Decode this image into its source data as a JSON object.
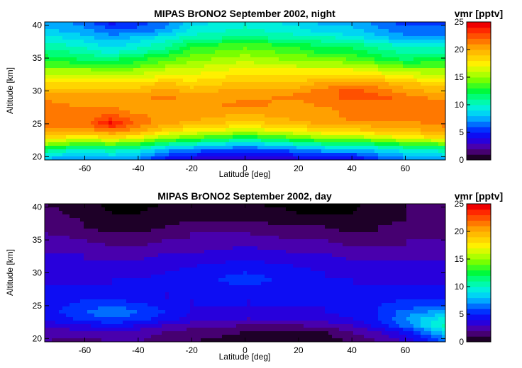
{
  "chart_data": [
    {
      "type": "heatmap",
      "title": "MIPAS BrONO2  September 2002, night",
      "xlabel": "Latitude [deg]",
      "ylabel": "Altitude [km]",
      "xlim": [
        -75,
        75
      ],
      "ylim": [
        19.5,
        40.5
      ],
      "x_ticks": [
        -60,
        -40,
        -20,
        0,
        20,
        40,
        60
      ],
      "y_ticks": [
        20,
        25,
        30,
        35,
        40
      ],
      "x": [
        -75,
        -60,
        -50,
        -40,
        -30,
        -20,
        0,
        20,
        30,
        40,
        50,
        60,
        75
      ],
      "y": [
        19.5,
        21,
        22,
        23,
        24,
        25,
        26,
        27,
        28,
        29,
        30,
        31,
        32,
        33,
        34,
        35,
        36,
        37,
        38,
        39,
        40.5
      ],
      "z": [
        [
          8,
          7,
          8,
          7,
          5,
          4,
          3,
          4,
          4,
          4,
          6,
          7,
          8
        ],
        [
          12,
          10,
          11,
          10,
          8,
          7,
          6,
          7,
          8,
          8,
          9,
          10,
          11
        ],
        [
          16,
          14,
          15,
          14,
          12,
          11,
          9,
          11,
          12,
          12,
          13,
          14,
          15
        ],
        [
          19,
          18,
          19,
          18,
          16,
          15,
          13,
          15,
          16,
          16,
          17,
          18,
          19
        ],
        [
          21,
          21,
          22,
          21,
          19,
          18,
          17,
          18,
          19,
          19,
          20,
          20,
          21
        ],
        [
          22,
          22,
          25,
          22,
          21,
          20,
          19,
          20,
          21,
          21,
          21,
          21,
          22
        ],
        [
          22,
          22,
          23,
          22,
          21,
          21,
          20,
          21,
          21,
          22,
          22,
          22,
          22
        ],
        [
          22,
          22,
          22,
          21,
          21,
          21,
          21,
          21,
          21,
          22,
          22,
          22,
          22
        ],
        [
          22,
          21,
          21,
          21,
          21,
          21,
          22,
          21,
          22,
          22,
          22,
          22,
          22
        ],
        [
          21,
          21,
          21,
          21,
          22,
          21,
          21,
          22,
          22,
          23,
          23,
          22,
          21
        ],
        [
          20,
          20,
          20,
          20,
          21,
          20,
          21,
          21,
          22,
          23,
          22,
          21,
          20
        ],
        [
          19,
          19,
          19,
          19,
          20,
          19,
          20,
          20,
          21,
          21,
          21,
          20,
          19
        ],
        [
          17,
          17,
          17,
          17,
          18,
          18,
          19,
          19,
          19,
          19,
          19,
          18,
          17
        ],
        [
          16,
          16,
          16,
          16,
          17,
          17,
          18,
          18,
          18,
          18,
          17,
          16,
          16
        ],
        [
          14,
          14,
          13,
          14,
          15,
          16,
          17,
          16,
          16,
          16,
          15,
          14,
          14
        ],
        [
          13,
          12,
          12,
          13,
          14,
          15,
          16,
          15,
          15,
          14,
          13,
          12,
          13
        ],
        [
          12,
          11,
          10,
          11,
          12,
          14,
          15,
          14,
          13,
          13,
          12,
          11,
          11
        ],
        [
          11,
          10,
          9,
          10,
          11,
          13,
          14,
          13,
          12,
          12,
          11,
          10,
          10
        ],
        [
          10,
          9,
          8,
          9,
          10,
          11,
          12,
          11,
          11,
          10,
          9,
          8,
          8
        ],
        [
          9,
          8,
          7,
          7,
          8,
          10,
          11,
          10,
          9,
          9,
          8,
          7,
          7
        ],
        [
          8,
          7,
          5,
          6,
          7,
          9,
          10,
          9,
          8,
          8,
          7,
          6,
          6
        ]
      ],
      "colorbar": {
        "title": "vmr [pptv]",
        "range": [
          0,
          25
        ],
        "ticks": [
          0,
          5,
          10,
          15,
          20,
          25
        ]
      }
    },
    {
      "type": "heatmap",
      "title": "MIPAS BrONO2  September 2002, day",
      "xlabel": "Latitude [deg]",
      "ylabel": "Altitude [km]",
      "xlim": [
        -75,
        75
      ],
      "ylim": [
        19.5,
        40.5
      ],
      "x_ticks": [
        -60,
        -40,
        -20,
        0,
        20,
        40,
        60
      ],
      "y_ticks": [
        20,
        25,
        30,
        35,
        40
      ],
      "x": [
        -75,
        -60,
        -50,
        -40,
        -30,
        -20,
        0,
        20,
        30,
        40,
        50,
        60,
        75
      ],
      "y": [
        19.5,
        21,
        22,
        23,
        24,
        25,
        26,
        27,
        28,
        29,
        30,
        31,
        32,
        33,
        34,
        35,
        36,
        37,
        38,
        39,
        40.5
      ],
      "z": [
        [
          2.5,
          2.0,
          2.5,
          2.5,
          2.0,
          1.5,
          1.0,
          0.8,
          1.0,
          1.5,
          2.5,
          3.5,
          6.5
        ],
        [
          3.0,
          3.0,
          3.5,
          3.0,
          2.5,
          2.0,
          1.5,
          1.5,
          1.5,
          2.5,
          3.5,
          5.0,
          9.0
        ],
        [
          4.0,
          4.5,
          5.0,
          4.5,
          3.5,
          3.0,
          2.5,
          2.5,
          3.0,
          3.5,
          5.0,
          7.0,
          11.0
        ],
        [
          4.5,
          6.0,
          6.5,
          6.0,
          5.0,
          4.0,
          3.5,
          3.5,
          4.0,
          4.5,
          5.5,
          7.5,
          10.0
        ],
        [
          5.0,
          6.5,
          7.5,
          6.5,
          5.5,
          4.5,
          4.0,
          4.0,
          4.5,
          5.0,
          5.5,
          7.0,
          8.0
        ],
        [
          5.0,
          6.0,
          6.5,
          6.0,
          5.0,
          4.5,
          4.5,
          4.5,
          4.5,
          5.0,
          5.5,
          6.0,
          6.5
        ],
        [
          4.5,
          5.5,
          5.5,
          5.0,
          4.5,
          4.5,
          4.5,
          4.5,
          4.5,
          4.5,
          5.0,
          5.5,
          5.5
        ],
        [
          4.5,
          5.0,
          5.0,
          4.5,
          4.5,
          4.5,
          5.0,
          4.5,
          4.5,
          4.5,
          4.5,
          5.0,
          5.0
        ],
        [
          4.5,
          4.5,
          4.5,
          4.5,
          5.0,
          5.0,
          5.5,
          5.0,
          4.5,
          4.5,
          4.5,
          4.5,
          4.5
        ],
        [
          4.0,
          4.0,
          4.5,
          4.5,
          5.0,
          5.0,
          6.0,
          5.0,
          4.5,
          4.5,
          4.0,
          4.0,
          4.0
        ],
        [
          4.0,
          4.0,
          4.0,
          4.0,
          4.5,
          5.0,
          5.5,
          5.0,
          4.5,
          4.0,
          4.0,
          4.0,
          4.0
        ],
        [
          4.0,
          4.0,
          4.0,
          4.0,
          4.0,
          4.5,
          5.0,
          4.5,
          4.0,
          4.0,
          4.0,
          4.0,
          4.0
        ],
        [
          3.5,
          3.5,
          3.5,
          3.5,
          4.0,
          4.0,
          4.5,
          4.0,
          4.0,
          3.5,
          3.5,
          3.5,
          3.5
        ],
        [
          3.5,
          3.5,
          3.0,
          3.0,
          3.5,
          3.5,
          4.0,
          3.5,
          3.5,
          3.0,
          3.0,
          3.0,
          3.0
        ],
        [
          3.0,
          3.0,
          2.5,
          2.5,
          3.0,
          3.0,
          3.5,
          3.0,
          3.0,
          2.5,
          2.5,
          2.5,
          3.0
        ],
        [
          3.0,
          2.5,
          2.0,
          2.0,
          2.5,
          2.5,
          3.0,
          2.5,
          2.5,
          2.0,
          2.0,
          2.5,
          2.5
        ],
        [
          2.5,
          2.0,
          1.5,
          1.5,
          2.0,
          2.5,
          2.5,
          2.0,
          2.0,
          1.5,
          1.5,
          2.0,
          2.0
        ],
        [
          2.5,
          1.5,
          1.0,
          1.0,
          1.5,
          2.0,
          2.0,
          1.5,
          1.5,
          1.0,
          1.5,
          2.0,
          2.0
        ],
        [
          2.0,
          1.5,
          0.8,
          0.8,
          1.0,
          1.5,
          1.5,
          1.0,
          1.0,
          0.8,
          1.0,
          1.5,
          1.5
        ],
        [
          2.0,
          1.0,
          0.5,
          0.5,
          0.8,
          1.0,
          1.0,
          0.5,
          0.5,
          0.5,
          1.0,
          1.5,
          1.5
        ],
        [
          1.5,
          0.8,
          0.3,
          0.3,
          0.5,
          0.8,
          0.5,
          0.3,
          0.3,
          0.3,
          0.8,
          1.5,
          1.5
        ]
      ],
      "colorbar": {
        "title": "vmr [pptv]",
        "range": [
          0,
          25
        ],
        "ticks": [
          0,
          5,
          10,
          15,
          20,
          25
        ]
      }
    }
  ]
}
